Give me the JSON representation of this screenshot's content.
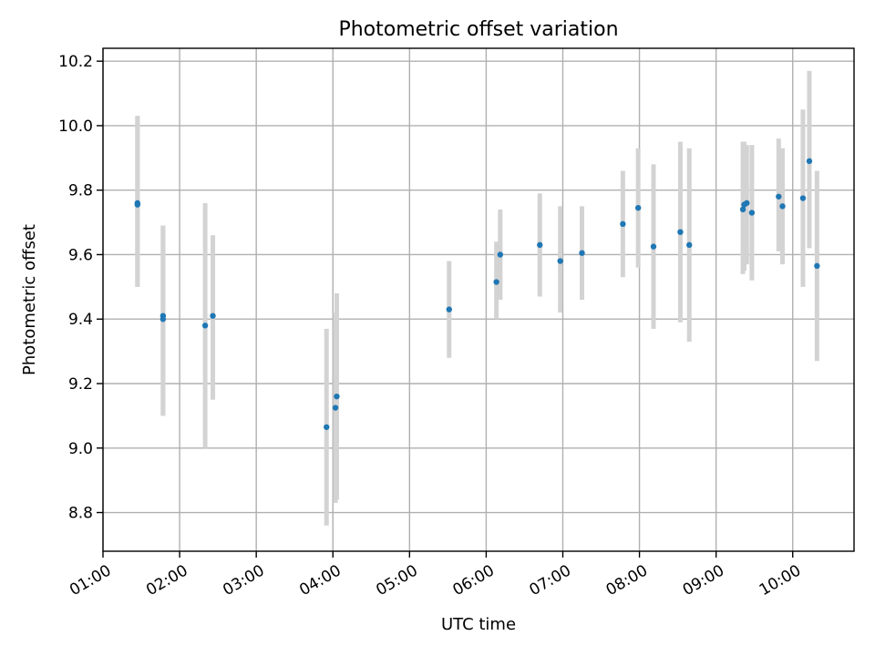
{
  "chart_data": {
    "type": "scatter",
    "title": "Photometric offset variation",
    "xlabel": "UTC time",
    "ylabel": "Photometric offset",
    "xlim": [
      "01:00",
      "10:48"
    ],
    "ylim": [
      8.68,
      10.24
    ],
    "grid": true,
    "marker_color": "#1f77b4",
    "errorbar_color": "#d3d3d3",
    "x_ticks": [
      "01:00",
      "02:00",
      "03:00",
      "04:00",
      "05:00",
      "06:00",
      "07:00",
      "08:00",
      "09:00",
      "10:00"
    ],
    "y_ticks": [
      "8.8",
      "9.0",
      "9.2",
      "9.4",
      "9.6",
      "9.8",
      "10.0",
      "10.2"
    ],
    "points": [
      {
        "time": "01:27",
        "y": 9.76,
        "low": 9.5,
        "high": 10.03
      },
      {
        "time": "01:27",
        "y": 9.755,
        "low": 9.5,
        "high": 10.03
      },
      {
        "time": "01:47",
        "y": 9.41,
        "low": 9.1,
        "high": 9.69
      },
      {
        "time": "01:47",
        "y": 9.4,
        "low": 9.1,
        "high": 9.69
      },
      {
        "time": "02:20",
        "y": 9.38,
        "low": 9.0,
        "high": 9.76
      },
      {
        "time": "02:26",
        "y": 9.41,
        "low": 9.15,
        "high": 9.66
      },
      {
        "time": "03:55",
        "y": 9.065,
        "low": 8.76,
        "high": 9.37
      },
      {
        "time": "04:02",
        "y": 9.125,
        "low": 8.83,
        "high": 9.42
      },
      {
        "time": "04:03",
        "y": 9.16,
        "low": 8.84,
        "high": 9.48
      },
      {
        "time": "05:31",
        "y": 9.43,
        "low": 9.28,
        "high": 9.58
      },
      {
        "time": "06:08",
        "y": 9.515,
        "low": 9.4,
        "high": 9.64
      },
      {
        "time": "06:11",
        "y": 9.6,
        "low": 9.46,
        "high": 9.74
      },
      {
        "time": "06:42",
        "y": 9.63,
        "low": 9.47,
        "high": 9.79
      },
      {
        "time": "06:58",
        "y": 9.58,
        "low": 9.42,
        "high": 9.75
      },
      {
        "time": "07:15",
        "y": 9.605,
        "low": 9.46,
        "high": 9.75
      },
      {
        "time": "07:47",
        "y": 9.695,
        "low": 9.53,
        "high": 9.86
      },
      {
        "time": "07:59",
        "y": 9.745,
        "low": 9.56,
        "high": 9.93
      },
      {
        "time": "08:11",
        "y": 9.625,
        "low": 9.37,
        "high": 9.88
      },
      {
        "time": "08:32",
        "y": 9.67,
        "low": 9.39,
        "high": 9.95
      },
      {
        "time": "08:39",
        "y": 9.63,
        "low": 9.33,
        "high": 9.93
      },
      {
        "time": "09:21",
        "y": 9.74,
        "low": 9.54,
        "high": 9.95
      },
      {
        "time": "09:22",
        "y": 9.755,
        "low": 9.55,
        "high": 9.95
      },
      {
        "time": "09:24",
        "y": 9.76,
        "low": 9.57,
        "high": 9.94
      },
      {
        "time": "09:28",
        "y": 9.73,
        "low": 9.52,
        "high": 9.94
      },
      {
        "time": "09:49",
        "y": 9.78,
        "low": 9.61,
        "high": 9.96
      },
      {
        "time": "09:52",
        "y": 9.75,
        "low": 9.57,
        "high": 9.93
      },
      {
        "time": "10:08",
        "y": 9.775,
        "low": 9.5,
        "high": 10.05
      },
      {
        "time": "10:13",
        "y": 9.89,
        "low": 9.62,
        "high": 10.17
      },
      {
        "time": "10:19",
        "y": 9.565,
        "low": 9.27,
        "high": 9.86
      }
    ]
  }
}
